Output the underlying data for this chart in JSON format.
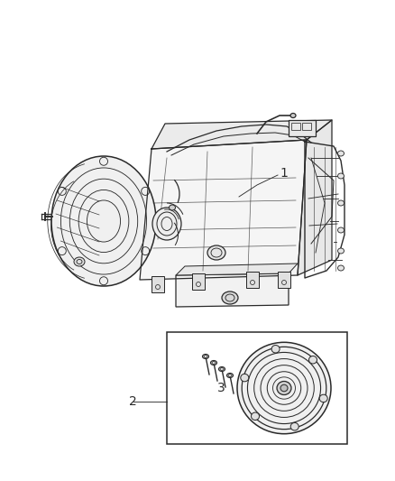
{
  "background_color": "#ffffff",
  "line_color": "#2a2a2a",
  "label_color": "#333333",
  "fig_width": 4.38,
  "fig_height": 5.33,
  "dpi": 100,
  "label_1": "1",
  "label_2": "2",
  "label_3": "3"
}
